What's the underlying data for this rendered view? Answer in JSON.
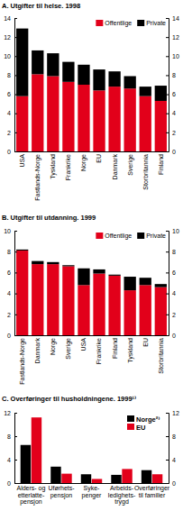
{
  "chart_data": [
    {
      "type": "bar",
      "title": "A. Utgifter til helse. 1998",
      "categories": [
        "USA",
        "Fastlands-Norge",
        "Tyskland",
        "Frankrike",
        "Norge",
        "EU",
        "Danmark",
        "Sverige",
        "Storbritannia",
        "Finland"
      ],
      "series": [
        {
          "name": "Offentlige",
          "color": "#e2001a",
          "values": [
            5.8,
            8.1,
            7.9,
            7.3,
            7.0,
            6.4,
            6.8,
            6.6,
            5.8,
            5.3
          ]
        },
        {
          "name": "Private",
          "color": "#000000",
          "values": [
            7.1,
            2.5,
            2.4,
            2.1,
            2.1,
            2.2,
            1.6,
            1.3,
            1.0,
            1.6
          ]
        }
      ],
      "ylim": [
        0,
        14
      ],
      "yticks": [
        0,
        2,
        4,
        6,
        8,
        10,
        12,
        14
      ],
      "stacked": true,
      "legend": "top-right"
    },
    {
      "type": "bar",
      "title": "B. Utgifter til utdanning. 1999",
      "categories": [
        "Fastlands-Norge",
        "Danmark",
        "Norge",
        "Sverige",
        "USA",
        "Frankrike",
        "Finland",
        "Tyskland",
        "EU",
        "Storbritannia"
      ],
      "series": [
        {
          "name": "Offentlige",
          "color": "#e2001a",
          "values": [
            8.1,
            6.8,
            6.8,
            6.6,
            4.8,
            5.9,
            5.7,
            4.3,
            4.8,
            4.6
          ]
        },
        {
          "name": "Private",
          "color": "#000000",
          "values": [
            0.1,
            0.3,
            0.2,
            0.1,
            1.6,
            0.4,
            0.1,
            1.3,
            0.7,
            0.3
          ]
        }
      ],
      "ylim": [
        0,
        10
      ],
      "yticks": [
        0,
        2,
        4,
        6,
        8,
        10
      ],
      "stacked": true,
      "legend": "top-right"
    },
    {
      "type": "bar",
      "title": "C. Overføringer til husholdningene. 1999¹⁾",
      "categories": [
        "Alders- og\netterlatte-\npensjon",
        "Uførhets-\npensjon",
        "Syke-\npenger",
        "Arbeids-\nledighets-\ntrygd",
        "Overføringer\ntil familier"
      ],
      "series": [
        {
          "name": "Norge²⁾",
          "color": "#000000",
          "values": [
            6.5,
            2.8,
            1.5,
            1.4,
            2.2
          ]
        },
        {
          "name": "EU",
          "color": "#e2001a",
          "values": [
            11.2,
            1.6,
            0.7,
            2.4,
            1.5
          ]
        }
      ],
      "ylim": [
        0,
        12
      ],
      "yticks": [
        0,
        4,
        8,
        12
      ],
      "stacked": false,
      "legend": "top-right"
    }
  ]
}
